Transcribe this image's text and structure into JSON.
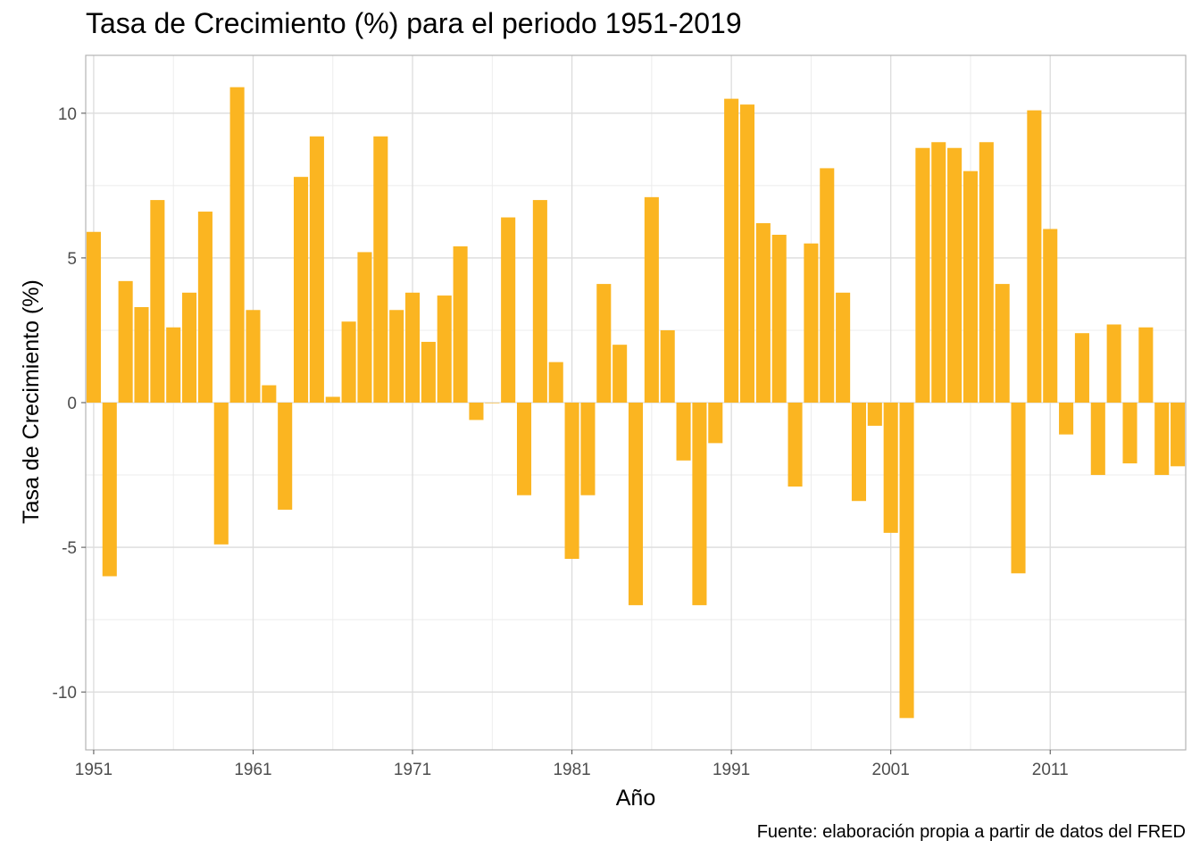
{
  "chart_data": {
    "type": "bar",
    "title": "Tasa de Crecimiento (%) para el periodo 1951-2019",
    "xlabel": "Año",
    "ylabel": "Tasa de Crecimiento (%)",
    "caption": "Fuente: elaboración propia a partir de datos del FRED",
    "x_ticks": [
      "1951",
      "1961",
      "1971",
      "1981",
      "1991",
      "2001",
      "2011"
    ],
    "y_ticks": [
      "-10",
      "-5",
      "0",
      "5",
      "10"
    ],
    "ylim": [
      -12,
      12
    ],
    "xlim": [
      1950.5,
      2019.5
    ],
    "grid": true,
    "bar_color": "#FBB521",
    "x": [
      1951,
      1952,
      1953,
      1954,
      1955,
      1956,
      1957,
      1958,
      1959,
      1960,
      1961,
      1962,
      1963,
      1964,
      1965,
      1966,
      1967,
      1968,
      1969,
      1970,
      1971,
      1972,
      1973,
      1974,
      1975,
      1976,
      1977,
      1978,
      1979,
      1980,
      1981,
      1982,
      1983,
      1984,
      1985,
      1986,
      1987,
      1988,
      1989,
      1990,
      1991,
      1992,
      1993,
      1994,
      1995,
      1996,
      1997,
      1998,
      1999,
      2000,
      2001,
      2002,
      2003,
      2004,
      2005,
      2006,
      2007,
      2008,
      2009,
      2010,
      2011,
      2012,
      2013,
      2014,
      2015,
      2016,
      2017,
      2018,
      2019
    ],
    "values": [
      5.9,
      -6.0,
      4.2,
      3.3,
      7.0,
      2.6,
      3.8,
      6.6,
      -4.9,
      10.9,
      3.2,
      0.6,
      -3.7,
      7.8,
      9.2,
      0.2,
      2.8,
      5.2,
      9.2,
      3.2,
      3.8,
      2.1,
      3.7,
      5.4,
      -0.6,
      0.0,
      6.4,
      -3.2,
      7.0,
      1.4,
      -5.4,
      -3.2,
      4.1,
      2.0,
      -7.0,
      7.1,
      2.5,
      -2.0,
      -7.0,
      -1.4,
      10.5,
      10.3,
      6.2,
      5.8,
      -2.9,
      5.5,
      8.1,
      3.8,
      -3.4,
      -0.8,
      -4.5,
      -10.9,
      8.8,
      9.0,
      8.8,
      8.0,
      9.0,
      4.1,
      -5.9,
      10.1,
      6.0,
      -1.1,
      2.4,
      -2.5,
      2.7,
      -2.1,
      2.6,
      -2.5,
      -2.2
    ]
  }
}
